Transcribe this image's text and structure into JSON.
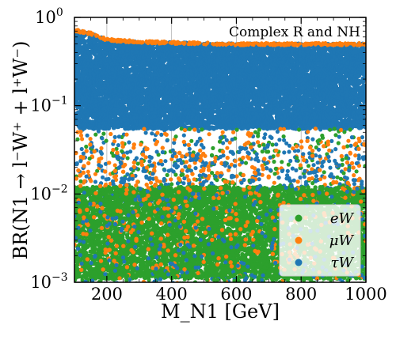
{
  "chart_data": {
    "type": "scatter",
    "title": "",
    "annotation": "Complex R and NH",
    "xlabel": "M_N1 [GeV]",
    "ylabel": "BR(N1 → l⁻W⁺ + l⁺W⁻)",
    "xlim": [
      100,
      1000
    ],
    "ylim": [
      0.001,
      1.0
    ],
    "yscale": "log",
    "grid": true,
    "legend_position": "lower-right",
    "x_ticks": [
      200,
      400,
      600,
      800,
      1000
    ],
    "y_ticks": [
      0.001,
      0.01,
      0.1,
      1.0
    ],
    "x_tick_labels": [
      "200",
      "400",
      "600",
      "800",
      "1000"
    ],
    "y_tick_labels": [
      {
        "base": "10",
        "exp": "−3"
      },
      {
        "base": "10",
        "exp": "−2"
      },
      {
        "base": "10",
        "exp": "−1"
      },
      {
        "base": "10",
        "exp": "0"
      }
    ],
    "series": [
      {
        "name": "eW",
        "color": "#2ca02c",
        "x_range": [
          100,
          1000
        ],
        "y_min_approx": 0.001,
        "y_max_approx": 0.04,
        "upper_edge": [
          [
            100,
            0.03
          ],
          [
            1000,
            0.03
          ]
        ]
      },
      {
        "name": "μW",
        "color": "#ff7f0e",
        "x_range": [
          100,
          1000
        ],
        "y_min_approx": 0.002,
        "y_max_approx": 0.72,
        "upper_edge": [
          [
            100,
            0.72
          ],
          [
            150,
            0.66
          ],
          [
            200,
            0.56
          ],
          [
            300,
            0.53
          ],
          [
            600,
            0.5
          ],
          [
            1000,
            0.5
          ]
        ]
      },
      {
        "name": "τW",
        "color": "#1f77b4",
        "x_range": [
          100,
          1000
        ],
        "y_min_approx": 0.001,
        "y_max_approx": 0.72,
        "dense_band": [
          0.06,
          0.6
        ],
        "upper_edge": [
          [
            100,
            0.72
          ],
          [
            150,
            0.66
          ],
          [
            200,
            0.56
          ],
          [
            300,
            0.53
          ],
          [
            600,
            0.5
          ],
          [
            1000,
            0.5
          ]
        ]
      }
    ]
  },
  "legend": [
    {
      "label": "eW",
      "color": "#2ca02c"
    },
    {
      "label": "μW",
      "color": "#ff7f0e"
    },
    {
      "label": "τW",
      "color": "#1f77b4"
    }
  ]
}
